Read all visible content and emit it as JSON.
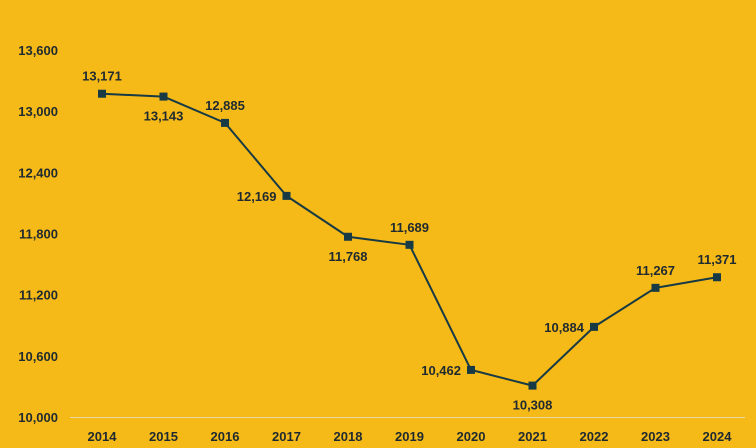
{
  "colors": {
    "background": "#F5B918",
    "series": "#173A44",
    "axis_baseline": "#E9D9A8",
    "text": "#1F2A30"
  },
  "chart_data": {
    "type": "line",
    "title": "",
    "xlabel": "",
    "ylabel": "",
    "grid": false,
    "legend": "none",
    "x": [
      "2014",
      "2015",
      "2016",
      "2017",
      "2018",
      "2019",
      "2020",
      "2021",
      "2022",
      "2023",
      "2024"
    ],
    "series": [
      {
        "values": [
          13171,
          13143,
          12885,
          12169,
          11768,
          11689,
          10462,
          10308,
          10884,
          11267,
          11371
        ],
        "value_labels": [
          "13,171",
          "13,143",
          "12,885",
          "12,169",
          "11,768",
          "11,689",
          "10,462",
          "10,308",
          "10,884",
          "11,267",
          "11,371"
        ],
        "marker": "square"
      }
    ],
    "ylim": [
      10000,
      13600
    ],
    "y_ticks": [
      10000,
      10600,
      11200,
      11800,
      12400,
      13000,
      13600
    ],
    "y_tick_labels": [
      "10,000",
      "10,600",
      "11,200",
      "11,800",
      "12,400",
      "13,000",
      "13,600"
    ]
  }
}
